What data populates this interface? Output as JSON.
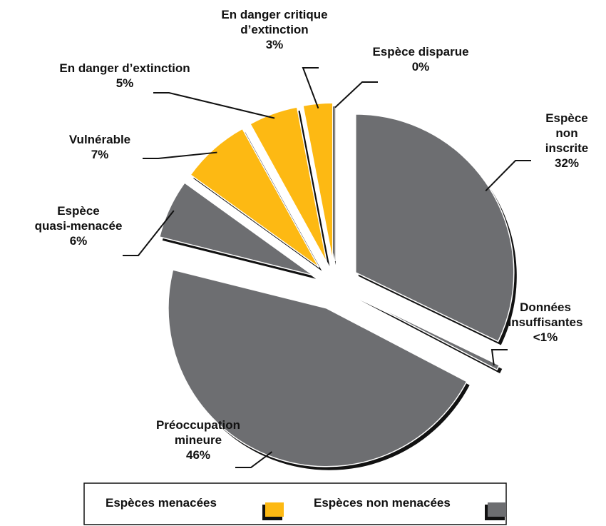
{
  "chart_data": {
    "type": "pie",
    "categories": [
      "Espèce\nnon inscrite",
      "Données\ninsuffisantes",
      "Préoccupation\nmineure",
      "Espèce\nquasi-menacée",
      "Vulnérable",
      "En danger d’extinction",
      "En danger critique\nd’extinction",
      "Espèce disparue"
    ],
    "values": [
      32,
      0.5,
      46,
      6,
      7,
      5,
      3,
      0
    ],
    "value_labels": [
      "32%",
      "<1%",
      "46%",
      "6%",
      "7%",
      "5%",
      "3%",
      "0%"
    ],
    "colors": [
      "#6d6e71",
      "#6d6e71",
      "#6d6e71",
      "#6d6e71",
      "#fdb913",
      "#fdb913",
      "#fdb913",
      "#fdb913"
    ],
    "legend": [
      {
        "name": "Espèces menacées",
        "color": "#fdb913"
      },
      {
        "name": "Espèces non menacées",
        "color": "#6d6e71"
      }
    ]
  }
}
